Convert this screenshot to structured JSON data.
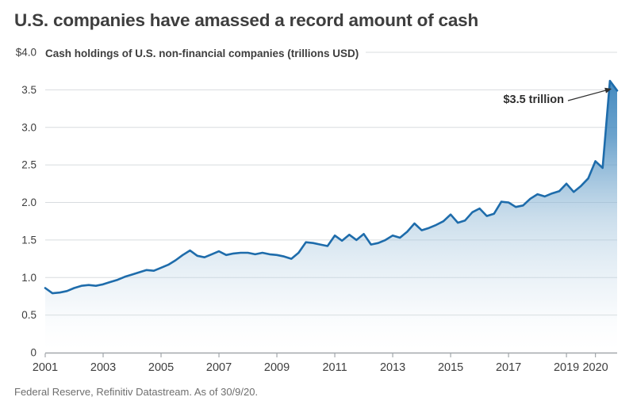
{
  "header": {
    "title": "U.S. companies have amassed a record amount of cash"
  },
  "chart": {
    "subtitle": "Cash holdings of U.S. non-financial companies (trillions USD)",
    "annotation_label": "$3.5 trillion",
    "source": "Federal Reserve, Refinitiv Datastream. As of 30/9/20."
  },
  "chart_data": {
    "type": "area",
    "title": "Cash holdings of U.S. non-financial companies (trillions USD)",
    "units": "trillions USD",
    "x": [
      2001.0,
      2001.25,
      2001.5,
      2001.75,
      2002.0,
      2002.25,
      2002.5,
      2002.75,
      2003.0,
      2003.25,
      2003.5,
      2003.75,
      2004.0,
      2004.25,
      2004.5,
      2004.75,
      2005.0,
      2005.25,
      2005.5,
      2005.75,
      2006.0,
      2006.25,
      2006.5,
      2006.75,
      2007.0,
      2007.25,
      2007.5,
      2007.75,
      2008.0,
      2008.25,
      2008.5,
      2008.75,
      2009.0,
      2009.25,
      2009.5,
      2009.75,
      2010.0,
      2010.25,
      2010.5,
      2010.75,
      2011.0,
      2011.25,
      2011.5,
      2011.75,
      2012.0,
      2012.25,
      2012.5,
      2012.75,
      2013.0,
      2013.25,
      2013.5,
      2013.75,
      2014.0,
      2014.25,
      2014.5,
      2014.75,
      2015.0,
      2015.25,
      2015.5,
      2015.75,
      2016.0,
      2016.25,
      2016.5,
      2016.75,
      2017.0,
      2017.25,
      2017.5,
      2017.75,
      2018.0,
      2018.25,
      2018.5,
      2018.75,
      2019.0,
      2019.25,
      2019.5,
      2019.75,
      2020.0,
      2020.25,
      2020.5,
      2020.75
    ],
    "values": [
      0.86,
      0.79,
      0.8,
      0.82,
      0.86,
      0.89,
      0.9,
      0.89,
      0.91,
      0.94,
      0.97,
      1.01,
      1.04,
      1.07,
      1.1,
      1.09,
      1.13,
      1.17,
      1.23,
      1.3,
      1.36,
      1.29,
      1.27,
      1.31,
      1.35,
      1.3,
      1.32,
      1.33,
      1.33,
      1.31,
      1.33,
      1.31,
      1.3,
      1.28,
      1.25,
      1.33,
      1.47,
      1.46,
      1.44,
      1.42,
      1.56,
      1.49,
      1.57,
      1.5,
      1.58,
      1.44,
      1.46,
      1.5,
      1.56,
      1.53,
      1.61,
      1.72,
      1.63,
      1.66,
      1.7,
      1.75,
      1.84,
      1.73,
      1.76,
      1.87,
      1.92,
      1.82,
      1.85,
      2.01,
      2.0,
      1.94,
      1.96,
      2.05,
      2.11,
      2.08,
      2.12,
      2.15,
      2.25,
      2.14,
      2.22,
      2.32,
      2.55,
      2.46,
      3.62,
      3.49
    ],
    "x_tick_labels": [
      "2001",
      "2003",
      "2005",
      "2007",
      "2009",
      "2011",
      "2013",
      "2015",
      "2017",
      "2019",
      "2020"
    ],
    "x_tick_values": [
      2001,
      2003,
      2005,
      2007,
      2009,
      2011,
      2013,
      2015,
      2017,
      2019,
      2020
    ],
    "y_tick_labels": [
      "$4.0",
      "3.5",
      "3.0",
      "2.5",
      "2.0",
      "1.5",
      "1.0",
      "0.5",
      "0"
    ],
    "y_tick_values": [
      4,
      3.5,
      3,
      2.5,
      2,
      1.5,
      1,
      0.5,
      0
    ],
    "xlim": [
      2001,
      2020.75
    ],
    "ylim": [
      0,
      4
    ],
    "grid": "horizontal",
    "legend": "none",
    "annotation": {
      "text": "$3.5 trillion",
      "points_to_x": 2020.75,
      "points_to_y": 3.49
    },
    "colors": {
      "line": "#1e6cab",
      "fill_top": "#2878b6",
      "fill_bottom": "#ffffff",
      "grid": "#d8dcdf",
      "axis": "#a2a7ab",
      "tick_text": "#3e3e3e",
      "title_text": "#3e3e3e",
      "source_text": "#6e6e6e",
      "annotation_text": "#2f2f2f"
    }
  }
}
